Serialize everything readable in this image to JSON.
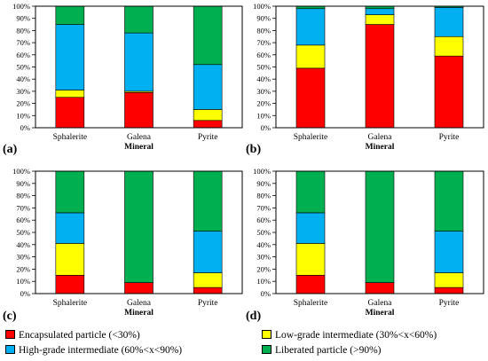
{
  "colors": {
    "encapsulated": "#ff0000",
    "low_grade": "#ffff00",
    "high_grade": "#00b0f0",
    "liberated": "#00b050"
  },
  "legend": [
    {
      "key": "encapsulated",
      "label": "Encapsulated particle (<30%)"
    },
    {
      "key": "low_grade",
      "label": "Low-grade intermediate (30%<x<60%)"
    },
    {
      "key": "high_grade",
      "label": "High-grade intermediate (60%<x<90%)"
    },
    {
      "key": "liberated",
      "label": "Liberated particle (>90%)"
    }
  ],
  "chart_data": [
    {
      "type": "bar",
      "stacked": true,
      "panel_label": "(a)",
      "xlabel": "Mineral",
      "categories": [
        "Sphalerite",
        "Galena",
        "Pyrite"
      ],
      "yticks": [
        "0%",
        "10%",
        "20%",
        "30%",
        "40%",
        "50%",
        "60%",
        "70%",
        "80%",
        "90%",
        "100%"
      ],
      "ylim": [
        0,
        100
      ],
      "series": [
        {
          "key": "encapsulated",
          "values": [
            25,
            29,
            6
          ]
        },
        {
          "key": "low_grade",
          "values": [
            6,
            1,
            9
          ]
        },
        {
          "key": "high_grade",
          "values": [
            54,
            48,
            37
          ]
        },
        {
          "key": "liberated",
          "values": [
            15,
            22,
            48
          ]
        }
      ]
    },
    {
      "type": "bar",
      "stacked": true,
      "panel_label": "(b)",
      "xlabel": "Mineral",
      "categories": [
        "Sphalerite",
        "Galena",
        "Pyrite"
      ],
      "yticks": [
        "0%",
        "10%",
        "20%",
        "30%",
        "40%",
        "50%",
        "60%",
        "70%",
        "80%",
        "90%",
        "100%"
      ],
      "ylim": [
        0,
        100
      ],
      "series": [
        {
          "key": "encapsulated",
          "values": [
            49,
            85,
            59
          ]
        },
        {
          "key": "low_grade",
          "values": [
            19,
            8,
            16
          ]
        },
        {
          "key": "high_grade",
          "values": [
            30,
            5,
            24
          ]
        },
        {
          "key": "liberated",
          "values": [
            2,
            2,
            1
          ]
        }
      ]
    },
    {
      "type": "bar",
      "stacked": true,
      "panel_label": "(c)",
      "xlabel": "Mineral",
      "categories": [
        "Sphalerite",
        "Galena",
        "Pyrite"
      ],
      "yticks": [
        "0%",
        "10%",
        "20%",
        "30%",
        "40%",
        "50%",
        "60%",
        "70%",
        "80%",
        "90%",
        "100%"
      ],
      "ylim": [
        0,
        100
      ],
      "series": [
        {
          "key": "encapsulated",
          "values": [
            15,
            9,
            5
          ]
        },
        {
          "key": "low_grade",
          "values": [
            26,
            0,
            12
          ]
        },
        {
          "key": "high_grade",
          "values": [
            25,
            0,
            34
          ]
        },
        {
          "key": "liberated",
          "values": [
            34,
            91,
            49
          ]
        }
      ]
    },
    {
      "type": "bar",
      "stacked": true,
      "panel_label": "(d)",
      "xlabel": "Mineral",
      "categories": [
        "Sphalerite",
        "Galena",
        "Pyrite"
      ],
      "yticks": [
        "0%",
        "10%",
        "20%",
        "30%",
        "40%",
        "50%",
        "60%",
        "70%",
        "80%",
        "90%",
        "100%"
      ],
      "ylim": [
        0,
        100
      ],
      "series": [
        {
          "key": "encapsulated",
          "values": [
            15,
            9,
            5
          ]
        },
        {
          "key": "low_grade",
          "values": [
            26,
            0,
            12
          ]
        },
        {
          "key": "high_grade",
          "values": [
            25,
            0,
            34
          ]
        },
        {
          "key": "liberated",
          "values": [
            34,
            91,
            49
          ]
        }
      ]
    }
  ]
}
